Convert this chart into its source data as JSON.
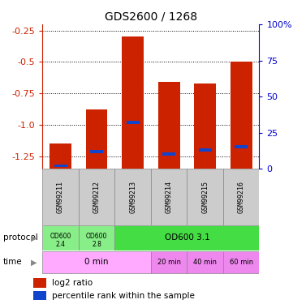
{
  "title": "GDS2600 / 1268",
  "samples": [
    "GSM99211",
    "GSM99212",
    "GSM99213",
    "GSM99214",
    "GSM99215",
    "GSM99216"
  ],
  "log2_ratio": [
    -1.15,
    -0.88,
    -0.3,
    -0.66,
    -0.67,
    -0.5
  ],
  "percentile_rank": [
    2,
    12,
    32,
    10,
    13,
    15
  ],
  "ylim_left": [
    -1.35,
    -0.2
  ],
  "ylim_right": [
    0,
    100
  ],
  "yticks_left": [
    -1.25,
    -1.0,
    -0.75,
    -0.5,
    -0.25
  ],
  "yticks_right": [
    0,
    25,
    50,
    75,
    100
  ],
  "bar_color_red": "#cc2200",
  "bar_color_blue": "#1144cc",
  "left_axis_color": "#cc2200",
  "right_axis_color": "#0000cc",
  "sample_box_color": "#cccccc",
  "protocol_color_light": "#88ee88",
  "protocol_color_dark": "#44dd44",
  "time_color_light": "#ffaaff",
  "time_color_dark": "#ee88ee"
}
